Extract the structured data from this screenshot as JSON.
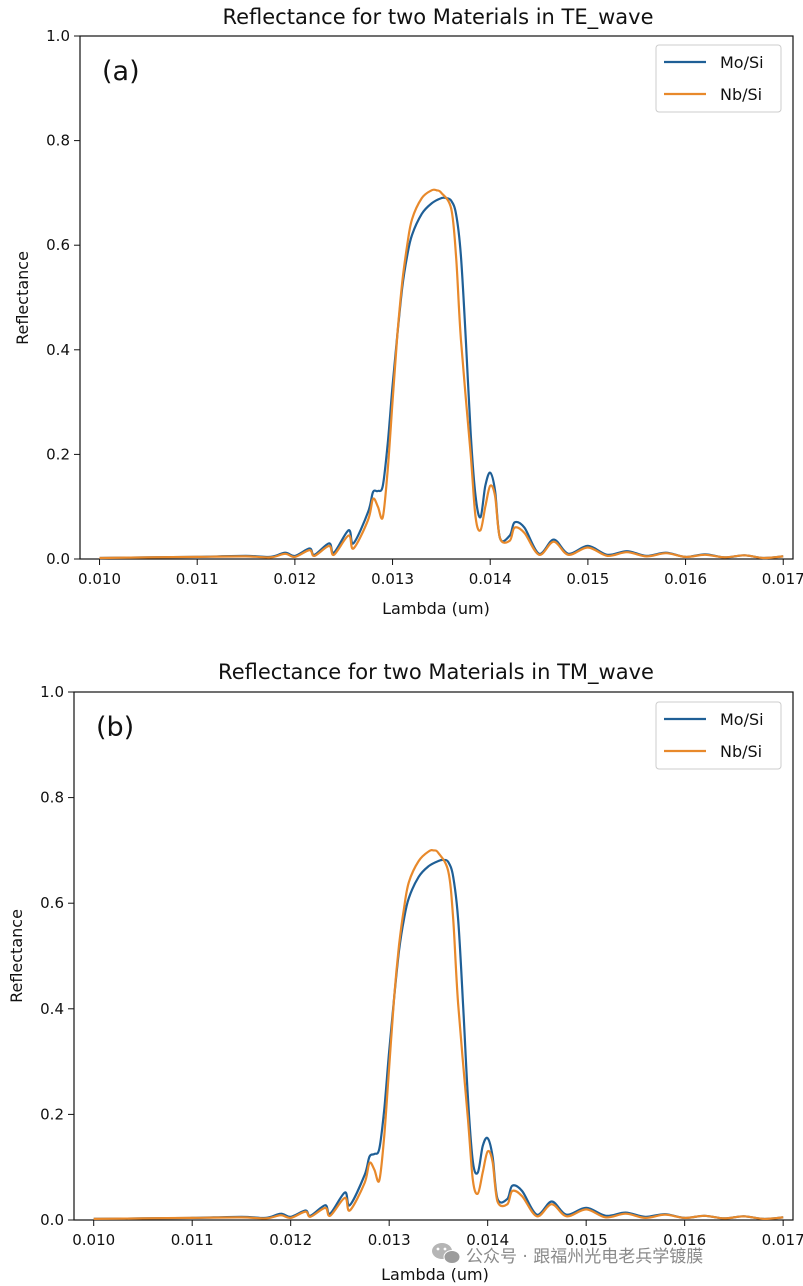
{
  "chart_data": [
    {
      "type": "line",
      "title": "Reflectance for two Materials in TE_wave",
      "panel_label": "(a)",
      "xlabel": "Lambda (um)",
      "ylabel": "Reflectance",
      "xlim": [
        0.0098,
        0.0171
      ],
      "ylim": [
        0.0,
        1.0
      ],
      "xticks": [
        0.01,
        0.011,
        0.012,
        0.013,
        0.014,
        0.015,
        0.016,
        0.017
      ],
      "xtick_labels": [
        "0.010",
        "0.011",
        "0.012",
        "0.013",
        "0.014",
        "0.015",
        "0.016",
        "0.017"
      ],
      "yticks": [
        0.0,
        0.2,
        0.4,
        0.6,
        0.8,
        1.0
      ],
      "ytick_labels": [
        "0.0",
        "0.2",
        "0.4",
        "0.6",
        "0.8",
        "1.0"
      ],
      "legend_position": "top-right",
      "grid": false,
      "series": [
        {
          "name": "Mo/Si",
          "color": "#1f5f96",
          "x": [
            0.01,
            0.0105,
            0.011,
            0.0115,
            0.01175,
            0.0119,
            0.012,
            0.01215,
            0.0122,
            0.01235,
            0.0124,
            0.01255,
            0.0126,
            0.01275,
            0.0128,
            0.01285,
            0.0129,
            0.01295,
            0.013,
            0.01305,
            0.0131,
            0.01315,
            0.0132,
            0.0133,
            0.0134,
            0.0135,
            0.01355,
            0.0136,
            0.01365,
            0.0137,
            0.01375,
            0.0138,
            0.01385,
            0.0139,
            0.01395,
            0.014,
            0.01405,
            0.0141,
            0.0142,
            0.01425,
            0.01435,
            0.0145,
            0.01465,
            0.0148,
            0.015,
            0.0152,
            0.0154,
            0.0156,
            0.0158,
            0.016,
            0.0162,
            0.0164,
            0.0166,
            0.0168,
            0.017
          ],
          "y": [
            0.002,
            0.003,
            0.004,
            0.006,
            0.004,
            0.012,
            0.006,
            0.02,
            0.008,
            0.03,
            0.012,
            0.055,
            0.03,
            0.09,
            0.128,
            0.13,
            0.14,
            0.22,
            0.33,
            0.43,
            0.52,
            0.58,
            0.62,
            0.66,
            0.68,
            0.69,
            0.69,
            0.685,
            0.66,
            0.58,
            0.42,
            0.24,
            0.12,
            0.08,
            0.14,
            0.165,
            0.13,
            0.04,
            0.045,
            0.07,
            0.06,
            0.01,
            0.037,
            0.01,
            0.025,
            0.008,
            0.015,
            0.006,
            0.012,
            0.004,
            0.009,
            0.003,
            0.007,
            0.002,
            0.005
          ]
        },
        {
          "name": "Nb/Si",
          "color": "#e8892b",
          "x": [
            0.01,
            0.0105,
            0.011,
            0.0115,
            0.01175,
            0.0119,
            0.012,
            0.01215,
            0.0122,
            0.01235,
            0.0124,
            0.01255,
            0.0126,
            0.01275,
            0.0128,
            0.01285,
            0.0129,
            0.01295,
            0.013,
            0.01305,
            0.0131,
            0.01315,
            0.0132,
            0.0133,
            0.0134,
            0.01345,
            0.0135,
            0.0136,
            0.01365,
            0.0137,
            0.0138,
            0.01385,
            0.0139,
            0.01395,
            0.014,
            0.01405,
            0.0141,
            0.0142,
            0.01425,
            0.01435,
            0.0145,
            0.01465,
            0.0148,
            0.015,
            0.0152,
            0.0154,
            0.0156,
            0.0158,
            0.016,
            0.0162,
            0.0164,
            0.0166,
            0.0168,
            0.017
          ],
          "y": [
            0.002,
            0.003,
            0.004,
            0.005,
            0.003,
            0.01,
            0.004,
            0.017,
            0.006,
            0.025,
            0.008,
            0.045,
            0.02,
            0.075,
            0.115,
            0.1,
            0.08,
            0.17,
            0.3,
            0.43,
            0.53,
            0.6,
            0.65,
            0.69,
            0.705,
            0.705,
            0.7,
            0.67,
            0.58,
            0.42,
            0.2,
            0.08,
            0.055,
            0.1,
            0.14,
            0.12,
            0.04,
            0.035,
            0.06,
            0.05,
            0.008,
            0.033,
            0.008,
            0.022,
            0.006,
            0.013,
            0.005,
            0.011,
            0.004,
            0.008,
            0.003,
            0.007,
            0.002,
            0.005
          ]
        }
      ]
    },
    {
      "type": "line",
      "title": "Reflectance for two Materials in TM_wave",
      "panel_label": "(b)",
      "xlabel": "Lambda (um)",
      "ylabel": "Reflectance",
      "xlim": [
        0.0098,
        0.0171
      ],
      "ylim": [
        0.0,
        1.0
      ],
      "xticks": [
        0.01,
        0.011,
        0.012,
        0.013,
        0.014,
        0.015,
        0.016,
        0.017
      ],
      "xtick_labels": [
        "0.010",
        "0.011",
        "0.012",
        "0.013",
        "0.014",
        "0.015",
        "0.016",
        "0.017"
      ],
      "yticks": [
        0.0,
        0.2,
        0.4,
        0.6,
        0.8,
        1.0
      ],
      "ytick_labels": [
        "0.0",
        "0.2",
        "0.4",
        "0.6",
        "0.8",
        "1.0"
      ],
      "legend_position": "top-right",
      "grid": false,
      "series": [
        {
          "name": "Mo/Si",
          "color": "#1f5f96",
          "x": [
            0.01,
            0.0105,
            0.011,
            0.0115,
            0.01175,
            0.0119,
            0.012,
            0.01215,
            0.0122,
            0.01235,
            0.0124,
            0.01255,
            0.0126,
            0.01275,
            0.0128,
            0.01285,
            0.0129,
            0.01295,
            0.013,
            0.01305,
            0.0131,
            0.01315,
            0.0132,
            0.0133,
            0.0134,
            0.0135,
            0.01355,
            0.0136,
            0.01365,
            0.0137,
            0.01375,
            0.0138,
            0.01385,
            0.0139,
            0.01395,
            0.014,
            0.01405,
            0.0141,
            0.0142,
            0.01425,
            0.01435,
            0.0145,
            0.01465,
            0.0148,
            0.015,
            0.0152,
            0.0154,
            0.0156,
            0.0158,
            0.016,
            0.0162,
            0.0164,
            0.0166,
            0.0168,
            0.017
          ],
          "y": [
            0.002,
            0.003,
            0.004,
            0.006,
            0.004,
            0.012,
            0.006,
            0.018,
            0.008,
            0.028,
            0.012,
            0.052,
            0.028,
            0.085,
            0.12,
            0.125,
            0.135,
            0.21,
            0.32,
            0.42,
            0.51,
            0.57,
            0.61,
            0.65,
            0.67,
            0.68,
            0.682,
            0.678,
            0.65,
            0.57,
            0.41,
            0.23,
            0.11,
            0.09,
            0.14,
            0.155,
            0.12,
            0.04,
            0.04,
            0.065,
            0.055,
            0.01,
            0.035,
            0.01,
            0.023,
            0.008,
            0.014,
            0.006,
            0.011,
            0.004,
            0.008,
            0.003,
            0.007,
            0.002,
            0.005
          ]
        },
        {
          "name": "Nb/Si",
          "color": "#e8892b",
          "x": [
            0.01,
            0.0105,
            0.011,
            0.0115,
            0.01175,
            0.0119,
            0.012,
            0.01215,
            0.0122,
            0.01235,
            0.0124,
            0.01255,
            0.0126,
            0.01275,
            0.0128,
            0.01285,
            0.0129,
            0.01295,
            0.013,
            0.01305,
            0.0131,
            0.01315,
            0.0132,
            0.0133,
            0.0134,
            0.01345,
            0.0135,
            0.0136,
            0.01365,
            0.0137,
            0.0138,
            0.01385,
            0.0139,
            0.01395,
            0.014,
            0.01405,
            0.0141,
            0.0142,
            0.01425,
            0.01435,
            0.0145,
            0.01465,
            0.0148,
            0.015,
            0.0152,
            0.0154,
            0.0156,
            0.0158,
            0.016,
            0.0162,
            0.0164,
            0.0166,
            0.0168,
            0.017
          ],
          "y": [
            0.002,
            0.003,
            0.004,
            0.005,
            0.003,
            0.009,
            0.004,
            0.016,
            0.006,
            0.023,
            0.008,
            0.042,
            0.018,
            0.07,
            0.108,
            0.095,
            0.075,
            0.16,
            0.29,
            0.42,
            0.52,
            0.59,
            0.64,
            0.68,
            0.698,
            0.7,
            0.695,
            0.66,
            0.57,
            0.41,
            0.19,
            0.075,
            0.05,
            0.09,
            0.13,
            0.11,
            0.035,
            0.03,
            0.055,
            0.045,
            0.007,
            0.03,
            0.007,
            0.02,
            0.005,
            0.012,
            0.004,
            0.01,
            0.004,
            0.008,
            0.003,
            0.007,
            0.002,
            0.005
          ]
        }
      ]
    }
  ],
  "watermark": {
    "text": "公众号 · 跟福州光电老兵学镀膜",
    "icon": "wechat-icon"
  }
}
